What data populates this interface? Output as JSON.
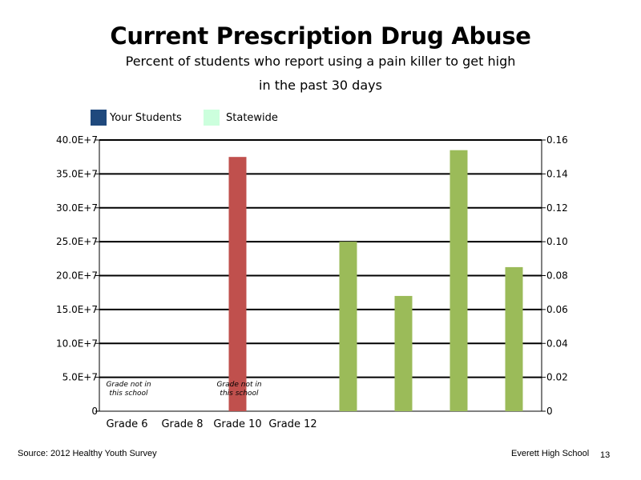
{
  "chart_data": {
    "type": "bar",
    "title": "Current Prescription Drug Abuse",
    "subtitle_line1": "Percent of students who report using a pain killer to get high",
    "subtitle_line2": "in the past 30 days",
    "categories": [
      "Grade 6",
      "Grade 8",
      "Grade 10",
      "Grade 12"
    ],
    "legend": [
      {
        "name": "Your Students",
        "color": "#1f497d"
      },
      {
        "name": "Statewide",
        "color": "#ccffdd"
      }
    ],
    "legend_position": "top-left",
    "left_axis": {
      "ylim": [
        0,
        400000000
      ],
      "ticks": [
        0,
        50000000,
        100000000,
        150000000,
        200000000,
        250000000,
        300000000,
        350000000,
        400000000
      ],
      "tick_labels": [
        "0",
        "5.0E+7",
        "10.0E+7",
        "15.0E+7",
        "20.0E+7",
        "25.0E+7",
        "30.0E+7",
        "35.0E+7",
        "40.0E+7"
      ]
    },
    "right_axis": {
      "ylim": [
        0,
        0.16
      ],
      "ticks": [
        0,
        0.02,
        0.04,
        0.06,
        0.08,
        0.1,
        0.12,
        0.14,
        0.16
      ],
      "tick_labels": [
        "0",
        "0.02",
        "0.04",
        "0.06",
        "0.08",
        "0.10",
        "0.12",
        "0.14",
        "0.16"
      ]
    },
    "grid": true,
    "left_bars": [
      {
        "category": "Grade 10",
        "value": 375000000,
        "color": "#c0504d"
      }
    ],
    "right_bars": [
      {
        "value": 0.1,
        "color": "#9bbb59"
      },
      {
        "value": 0.068,
        "color": "#9bbb59"
      },
      {
        "value": 0.154,
        "color": "#9bbb59"
      },
      {
        "value": 0.085,
        "color": "#9bbb59"
      }
    ],
    "annotations": [
      {
        "category": "Grade 6",
        "line1": "Grade not in",
        "line2": "this school"
      },
      {
        "category": "Grade 10",
        "line1": "Grade not in",
        "line2": "this school"
      }
    ]
  },
  "footer": {
    "source": "Source: 2012 Healthy Youth Survey",
    "school": "Everett High School",
    "page_number": "13"
  }
}
